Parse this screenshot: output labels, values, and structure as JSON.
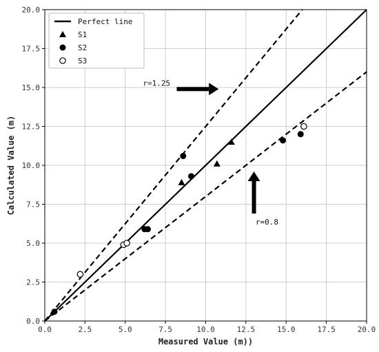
{
  "chart_data": {
    "type": "scatter",
    "xlabel": "Measured Value (m))",
    "ylabel": "Calculated Value (m)",
    "xlim": [
      0,
      20
    ],
    "ylim": [
      0,
      20
    ],
    "xticks": [
      0,
      2.5,
      5,
      7.5,
      10,
      12.5,
      15,
      17.5,
      20
    ],
    "yticks": [
      0,
      2.5,
      5,
      7.5,
      10,
      12.5,
      15,
      17.5,
      20
    ],
    "xtick_labels": [
      "0.0",
      "2.5",
      "5.0",
      "7.5",
      "10.0",
      "12.5",
      "15.0",
      "17.5",
      "20.0"
    ],
    "ytick_labels": [
      "0.0",
      "2.5",
      "5.0",
      "7.5",
      "10.0",
      "12.5",
      "15.0",
      "17.5",
      "20.0"
    ],
    "grid": true,
    "legend_position": "top-left",
    "lines": [
      {
        "name": "Perfect line",
        "slope": 1.0,
        "style": "solid"
      },
      {
        "slope": 1.25,
        "style": "dashed"
      },
      {
        "slope": 0.8,
        "style": "dashed"
      }
    ],
    "series": [
      {
        "name": "S1",
        "marker": "triangle",
        "x": [
          8.5,
          10.7,
          11.6
        ],
        "y": [
          8.9,
          10.1,
          11.5
        ]
      },
      {
        "name": "S2",
        "marker": "circle-filled",
        "x": [
          0.6,
          6.2,
          6.4,
          8.6,
          9.1,
          14.8,
          15.9
        ],
        "y": [
          0.6,
          5.9,
          5.9,
          10.6,
          9.3,
          11.6,
          12.0
        ]
      },
      {
        "name": "S3",
        "marker": "circle-open",
        "x": [
          2.2,
          4.9,
          5.1,
          16.1
        ],
        "y": [
          3.0,
          4.9,
          5.0,
          12.5
        ]
      }
    ],
    "annotations": [
      {
        "text": "r=1.25",
        "x": 6.1,
        "y": 15.1,
        "arrow_from": [
          8.2,
          14.9
        ],
        "arrow_to": [
          10.8,
          14.9
        ]
      },
      {
        "text": "r=0.8",
        "x": 13.1,
        "y": 6.2,
        "arrow_from": [
          13.0,
          6.9
        ],
        "arrow_to": [
          13.0,
          9.6
        ]
      }
    ],
    "colors": {
      "ink": "#000000",
      "grid": "#cccccc",
      "frame": "#000000"
    }
  }
}
